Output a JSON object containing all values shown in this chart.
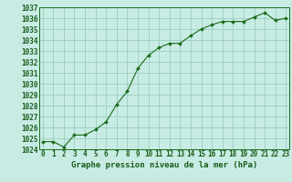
{
  "x": [
    0,
    1,
    2,
    3,
    4,
    5,
    6,
    7,
    8,
    9,
    10,
    11,
    12,
    13,
    14,
    15,
    16,
    17,
    18,
    19,
    20,
    21,
    22,
    23
  ],
  "y": [
    1024.7,
    1024.7,
    1024.2,
    1025.3,
    1025.3,
    1025.8,
    1026.5,
    1028.1,
    1029.3,
    1031.4,
    1032.6,
    1033.3,
    1033.7,
    1033.7,
    1034.4,
    1035.0,
    1035.4,
    1035.7,
    1035.7,
    1035.7,
    1036.1,
    1036.5,
    1035.8,
    1036.0
  ],
  "ylim": [
    1024,
    1037
  ],
  "xlim": [
    -0.3,
    23.3
  ],
  "yticks": [
    1024,
    1025,
    1026,
    1027,
    1028,
    1029,
    1030,
    1031,
    1032,
    1033,
    1034,
    1035,
    1036,
    1037
  ],
  "xticks": [
    0,
    1,
    2,
    3,
    4,
    5,
    6,
    7,
    8,
    9,
    10,
    11,
    12,
    13,
    14,
    15,
    16,
    17,
    18,
    19,
    20,
    21,
    22,
    23
  ],
  "line_color": "#1a6b1a",
  "marker_color": "#1a6b1a",
  "bg_color": "#c8ece4",
  "grid_color": "#90c8b8",
  "xlabel": "Graphe pression niveau de la mer (hPa)",
  "xlabel_fontsize": 6.5,
  "tick_fontsize": 5.5,
  "tick_color": "#1a5c1a",
  "spine_color": "#1a6b1a"
}
